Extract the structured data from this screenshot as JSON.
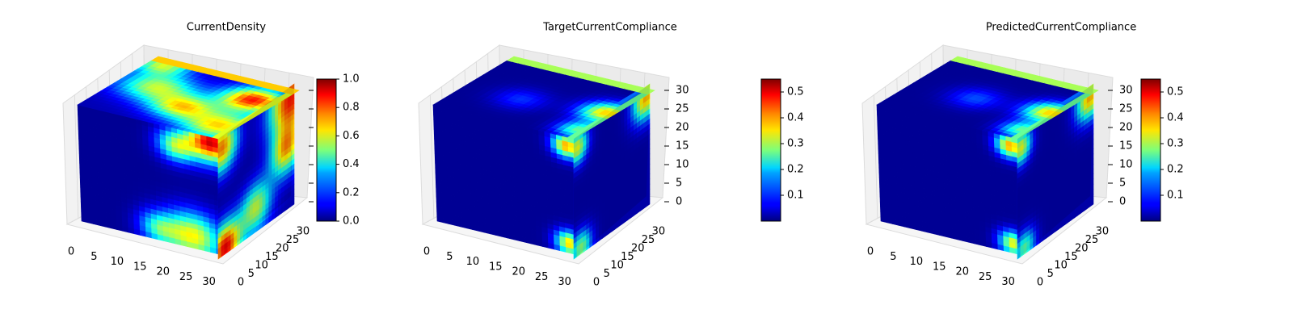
{
  "colormap": "jet",
  "chart_data": [
    {
      "type": "heatmap",
      "variant": "3d-voxel-cube",
      "title": "CurrentDensity",
      "x": {
        "range": [
          0,
          32
        ],
        "ticks": [
          0,
          5,
          10,
          15,
          20,
          25,
          30
        ]
      },
      "y": {
        "range": [
          0,
          32
        ],
        "ticks": [
          0,
          5,
          10,
          15,
          20,
          25,
          30
        ]
      },
      "z": {
        "range": [
          0,
          32
        ],
        "ticks": [],
        "tick_labels_shown": false
      },
      "colorbar": {
        "min": 0.0,
        "max": 1.0,
        "ticks": [
          "0.0",
          "0.2",
          "0.4",
          "0.6",
          "0.8",
          "1.0"
        ],
        "tick_values": [
          0.0,
          0.2,
          0.4,
          0.6,
          0.8,
          1.0
        ]
      },
      "value_range": [
        0.0,
        1.0
      ],
      "grid": true
    },
    {
      "type": "heatmap",
      "variant": "3d-voxel-cube",
      "title": "TargetCurrentCompliance",
      "x": {
        "range": [
          0,
          32
        ],
        "ticks": [
          0,
          5,
          10,
          15,
          20,
          25,
          30
        ]
      },
      "y": {
        "range": [
          0,
          32
        ],
        "ticks": [
          0,
          5,
          10,
          15,
          20,
          25,
          30
        ]
      },
      "z": {
        "range": [
          0,
          32
        ],
        "ticks": [
          0,
          5,
          10,
          15,
          20,
          25,
          30
        ]
      },
      "colorbar": {
        "min": 0.0,
        "max": 0.55,
        "ticks": [
          "0.1",
          "0.2",
          "0.3",
          "0.4",
          "0.5"
        ],
        "tick_values": [
          0.1,
          0.2,
          0.3,
          0.4,
          0.5
        ]
      },
      "value_range": [
        0.0,
        0.55
      ],
      "grid": true
    },
    {
      "type": "heatmap",
      "variant": "3d-voxel-cube",
      "title": "PredictedCurrentCompliance",
      "x": {
        "range": [
          0,
          32
        ],
        "ticks": [
          0,
          5,
          10,
          15,
          20,
          25,
          30
        ]
      },
      "y": {
        "range": [
          0,
          32
        ],
        "ticks": [
          0,
          5,
          10,
          15,
          20,
          25,
          30
        ]
      },
      "z": {
        "range": [
          0,
          32
        ],
        "ticks": [
          0,
          5,
          10,
          15,
          20,
          25,
          30
        ]
      },
      "colorbar": {
        "min": 0.0,
        "max": 0.55,
        "ticks": [
          "0.1",
          "0.2",
          "0.3",
          "0.4",
          "0.5"
        ],
        "tick_values": [
          0.1,
          0.2,
          0.3,
          0.4,
          0.5
        ]
      },
      "value_range": [
        0.0,
        0.55
      ],
      "grid": true
    }
  ]
}
